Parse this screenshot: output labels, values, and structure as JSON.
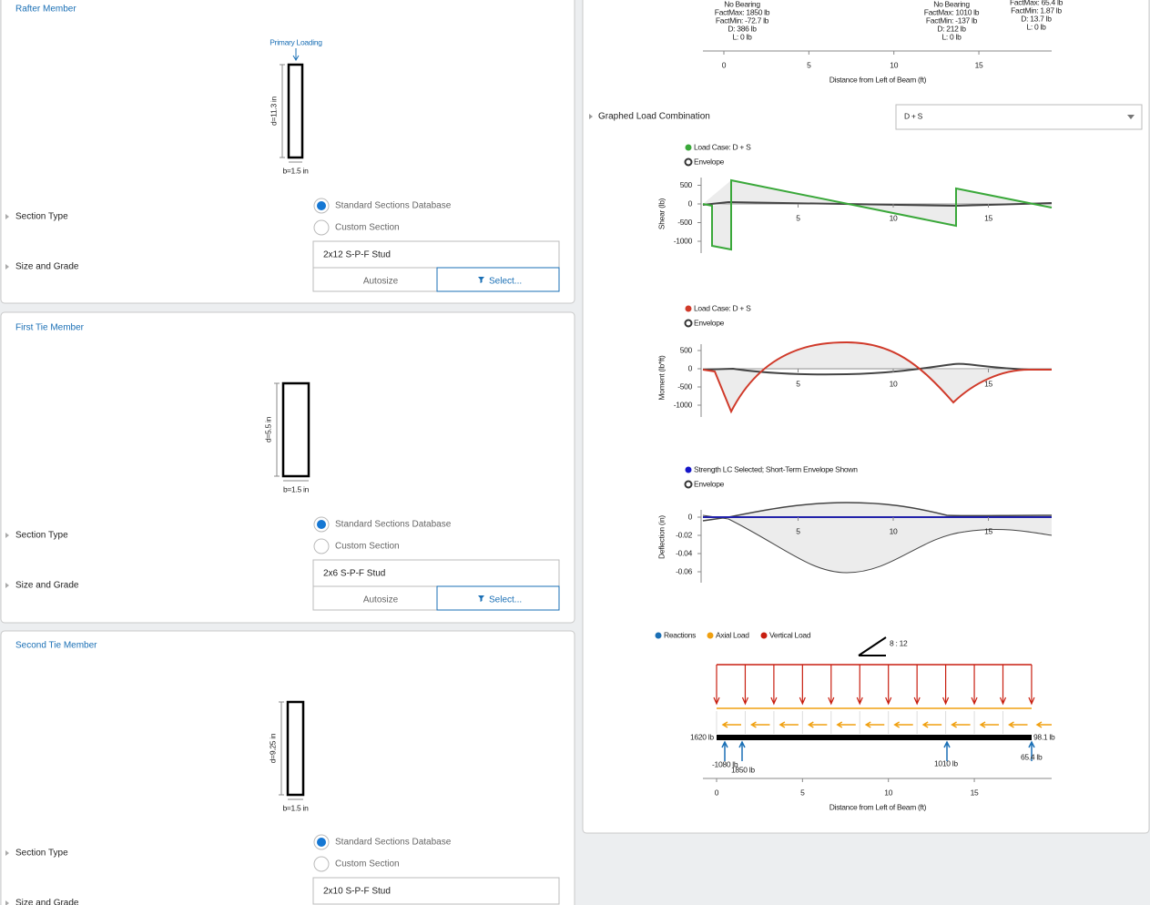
{
  "members": [
    {
      "title": "Rafter Member",
      "load_label": "Primary Loading",
      "depth_label": "d=11.3 in",
      "width_label": "b=1.5 in",
      "section_type_label": "Section Type",
      "options": [
        "Standard Sections Database",
        "Custom Section"
      ],
      "size_label": "Size and Grade",
      "size_value": "2x12 S-P-F Stud",
      "autosize": "Autosize",
      "select": "Select..."
    },
    {
      "title": "First Tie Member",
      "depth_label": "d=5.5 in",
      "width_label": "b=1.5 in",
      "section_type_label": "Section Type",
      "options": [
        "Standard Sections Database",
        "Custom Section"
      ],
      "size_label": "Size and Grade",
      "size_value": "2x6 S-P-F Stud",
      "autosize": "Autosize",
      "select": "Select..."
    },
    {
      "title": "Second Tie Member",
      "depth_label": "d=9.25 in",
      "width_label": "b=1.5 in",
      "section_type_label": "Section Type",
      "options": [
        "Standard Sections Database",
        "Custom Section"
      ],
      "size_label": "Size and Grade",
      "size_value": "2x10 S-P-F Stud"
    }
  ],
  "reactions_chart": {
    "clusters": [
      [
        "No Bearing",
        "FactMax: 1850 lb",
        "FactMin: -72.7 lb",
        "D: 386 lb",
        "L: 0 lb"
      ],
      [
        "No Bearing",
        "FactMax: 1010 lb",
        "FactMin: -137 lb",
        "D: 212 lb",
        "L: 0 lb"
      ],
      [
        "FactMax: 65.4 lb",
        "FactMin: 1.87 lb",
        "D: 13.7 lb",
        "L: 0 lb"
      ]
    ],
    "xticks": [
      0,
      5,
      10,
      15
    ],
    "xlabel": "Distance from Left of Beam (ft)"
  },
  "graphed_load_combination": {
    "label": "Graphed Load Combination",
    "value": "D + S"
  },
  "shear": {
    "legend": [
      "Load Case: D + S",
      "Envelope"
    ],
    "ylabel": "Shear (lb)",
    "yticks": [
      500,
      0,
      -500,
      -1000
    ],
    "xticks": [
      5,
      10,
      15
    ]
  },
  "moment": {
    "legend": [
      "Load Case: D + S",
      "Envelope"
    ],
    "ylabel": "Moment (lb*ft)",
    "yticks": [
      500,
      0,
      -500,
      -1000
    ],
    "xticks": [
      5,
      10,
      15
    ]
  },
  "deflection": {
    "legend": [
      "Strength LC Selected; Short-Term Envelope Shown",
      "Envelope"
    ],
    "ylabel": "Deflection (in)",
    "yticks": [
      0,
      -0.02,
      -0.04,
      -0.06
    ],
    "xticks": [
      5,
      10,
      15
    ]
  },
  "load_diagram": {
    "legend": [
      "Reactions",
      "Axial Load",
      "Vertical Load"
    ],
    "slope": "8 : 12",
    "labels": [
      "1620 lb",
      "-1080 lb",
      "1850 lb",
      "1010 lb",
      "98.1 lb",
      "65.4 lb"
    ],
    "xticks": [
      0,
      5,
      10,
      15
    ],
    "xlabel": "Distance from Left of Beam (ft)"
  }
}
